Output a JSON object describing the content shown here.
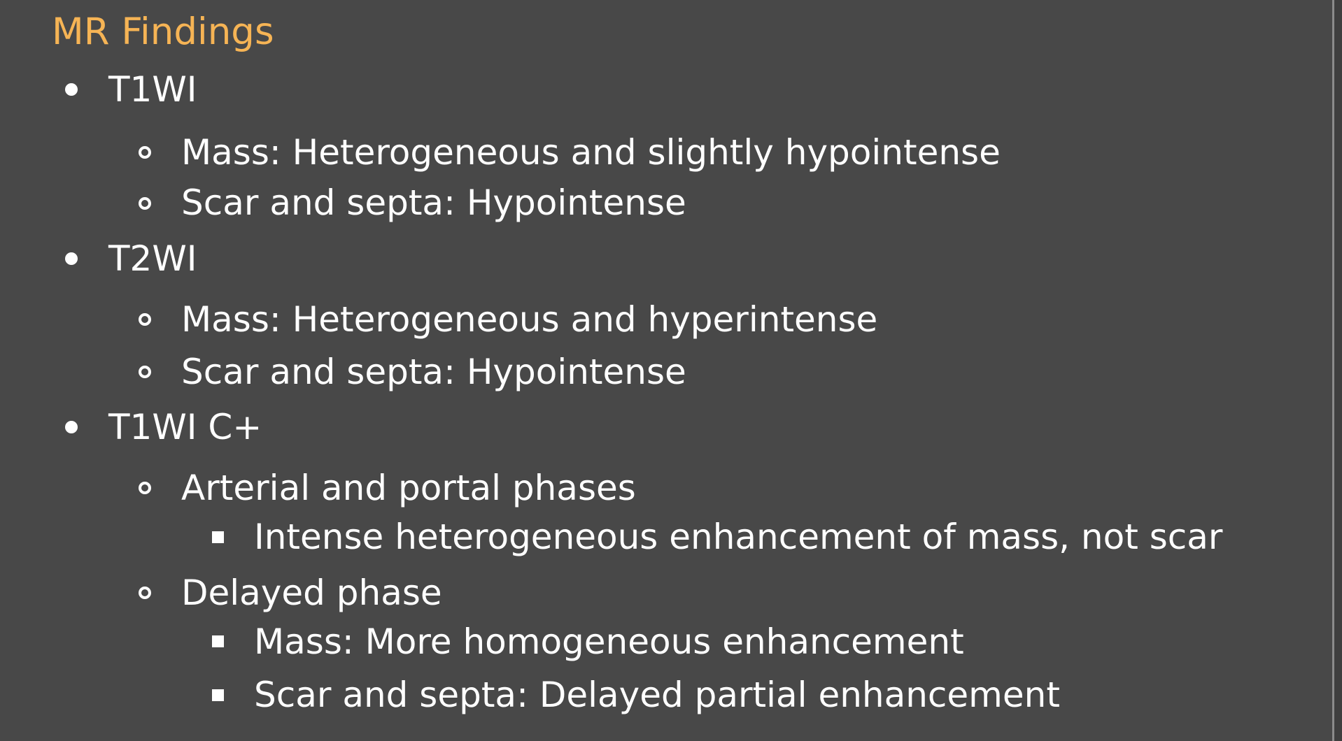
{
  "title": "MR Findings",
  "items": [
    {
      "level": 1,
      "text": "T1WI"
    },
    {
      "level": 2,
      "text": "Mass: Heterogeneous and slightly hypointense"
    },
    {
      "level": 2,
      "text": "Scar and septa: Hypointense"
    },
    {
      "level": 1,
      "text": "T2WI"
    },
    {
      "level": 2,
      "text": "Mass: Heterogeneous and hyperintense"
    },
    {
      "level": 2,
      "text": "Scar and septa: Hypointense"
    },
    {
      "level": 1,
      "text": "T1WI C+"
    },
    {
      "level": 2,
      "text": "Arterial and portal phases"
    },
    {
      "level": 3,
      "text": "Intense heterogeneous enhancement of mass, not scar"
    },
    {
      "level": 2,
      "text": "Delayed phase"
    },
    {
      "level": 3,
      "text": "Mass: More homogeneous enhancement"
    },
    {
      "level": 3,
      "text": "Scar and septa: Delayed partial enhancement"
    }
  ],
  "colors": {
    "background": "#484848",
    "title": "#f6b455",
    "text": "#ffffff"
  }
}
